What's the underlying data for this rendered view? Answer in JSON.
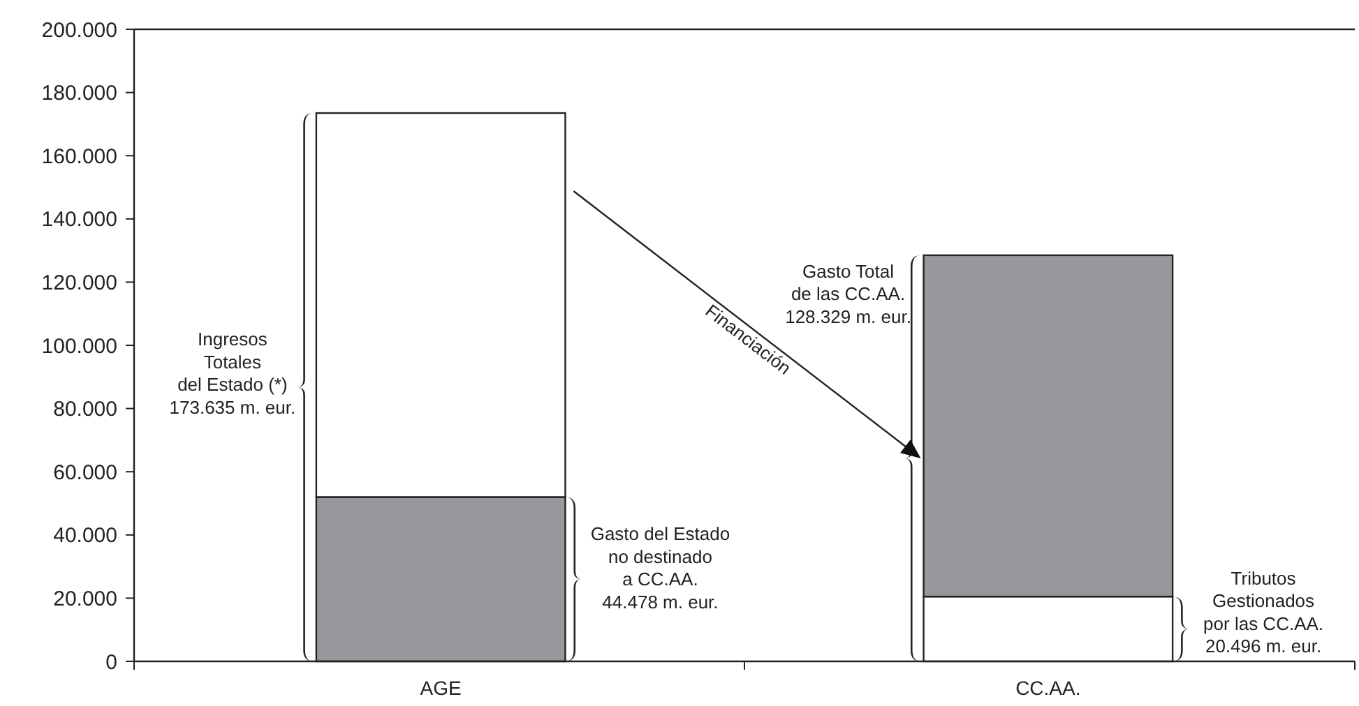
{
  "chart_data": {
    "type": "bar",
    "stacked": true,
    "categories": [
      "AGE",
      "CC.AA."
    ],
    "series": [
      {
        "colors": [
          "#97989b",
          "#ffffff"
        ],
        "values": [
          52000,
          20500
        ]
      },
      {
        "colors": [
          "#ffffff",
          "#97989b"
        ],
        "values": [
          121500,
          108000
        ]
      }
    ],
    "ylim": [
      0,
      200000
    ],
    "yticks": [
      {
        "value": 0,
        "label": "0"
      },
      {
        "value": 20000,
        "label": "20.000"
      },
      {
        "value": 40000,
        "label": "40.000"
      },
      {
        "value": 60000,
        "label": "60.000"
      },
      {
        "value": 80000,
        "label": "80.000"
      },
      {
        "value": 100000,
        "label": "100.000"
      },
      {
        "value": 120000,
        "label": "120.000"
      },
      {
        "value": 140000,
        "label": "140.000"
      },
      {
        "value": 160000,
        "label": "160.000"
      },
      {
        "value": 180000,
        "label": "180.000"
      },
      {
        "value": 200000,
        "label": "200.000"
      }
    ],
    "grid": false,
    "annotations": [
      "Ingresos\nTotales\ndel Estado (*)\n173.635 m. eur.",
      "Gasto del Estado\nno destinado\na CC.AA.\n44.478 m. eur.",
      "Gasto Total\nde las CC.AA.\n128.329 m. eur.",
      "Tributos\nGestionados\npor las CC.AA.\n20.496 m. eur.",
      "Financiación"
    ]
  }
}
